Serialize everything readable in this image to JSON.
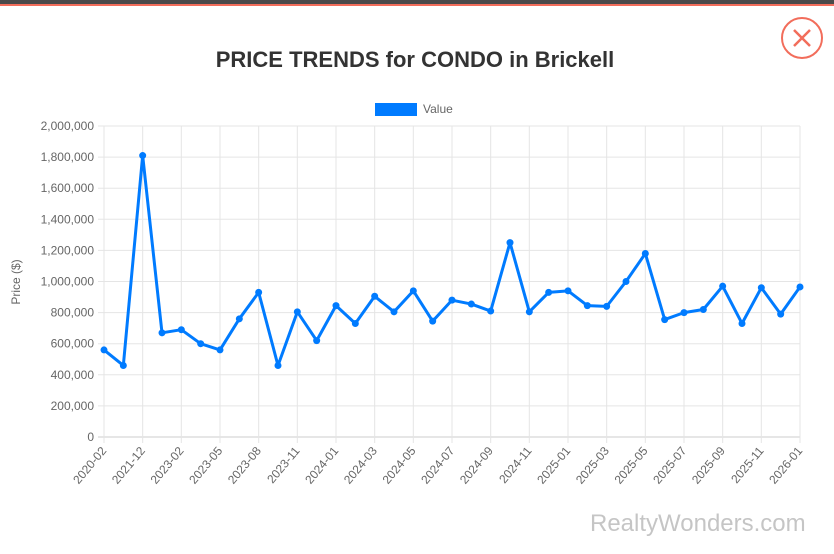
{
  "title": "PRICE TRENDS for CONDO in Brickell",
  "watermark": "RealtyWonders.com",
  "close_icon": "close-x-icon",
  "colors": {
    "line": "#007bff",
    "close": "#f26d5b",
    "grid": "#e0e0e0"
  },
  "chart_data": {
    "type": "line",
    "title": "PRICE TRENDS for CONDO in Brickell",
    "xlabel": "",
    "ylabel": "Price ($)",
    "ylim": [
      0,
      2000000
    ],
    "yticks": [
      "0",
      "200,000",
      "400,000",
      "600,000",
      "800,000",
      "1,000,000",
      "1,200,000",
      "1,400,000",
      "1,600,000",
      "1,800,000",
      "2,000,000"
    ],
    "xtick_labels": [
      "2020-02",
      "2021-12",
      "2023-02",
      "2023-05",
      "2023-08",
      "2023-11",
      "2024-01",
      "2024-03",
      "2024-05",
      "2024-07",
      "2024-09",
      "2024-11",
      "2025-01",
      "2025-03",
      "2025-05",
      "2025-07",
      "2025-09",
      "2025-11",
      "2026-01"
    ],
    "legend": "top",
    "grid": true,
    "series": [
      {
        "name": "Value",
        "values": [
          560000,
          460000,
          1810000,
          670000,
          690000,
          600000,
          560000,
          760000,
          930000,
          460000,
          805000,
          620000,
          845000,
          730000,
          905000,
          805000,
          940000,
          745000,
          880000,
          855000,
          810000,
          1250000,
          805000,
          930000,
          940000,
          845000,
          840000,
          1000000,
          1180000,
          755000,
          800000,
          820000,
          970000,
          730000,
          960000,
          790000,
          965000
        ]
      }
    ]
  }
}
